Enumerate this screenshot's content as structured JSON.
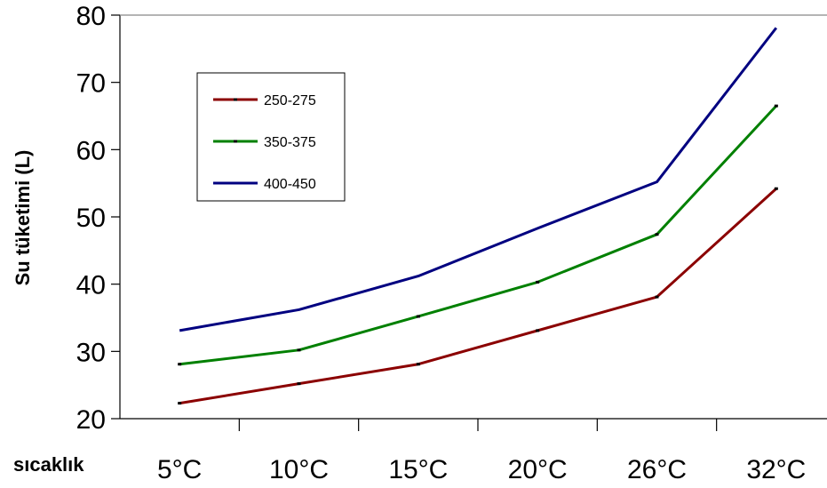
{
  "chart_data": {
    "type": "line",
    "categories": [
      "5°C",
      "10°C",
      "15°C",
      "20°C",
      "26°C",
      "32°C"
    ],
    "xlabel": "sıcaklık",
    "ylabel": "Su tüketimi (L)",
    "ylim": [
      20,
      80
    ],
    "yticks": [
      20,
      30,
      40,
      50,
      60,
      70,
      80
    ],
    "grid": false,
    "legend_position": "top-left",
    "series": [
      {
        "name": "250-275",
        "color": "#8B0000",
        "values": [
          22.3,
          25.2,
          28.1,
          33.1,
          38.1,
          54.2
        ]
      },
      {
        "name": "350-375",
        "color": "#008000",
        "values": [
          28.1,
          30.2,
          35.2,
          40.3,
          47.4,
          66.5
        ]
      },
      {
        "name": "400-450",
        "color": "#000080",
        "values": [
          33.1,
          36.2,
          41.2,
          48.3,
          55.2,
          78.1
        ]
      }
    ]
  }
}
